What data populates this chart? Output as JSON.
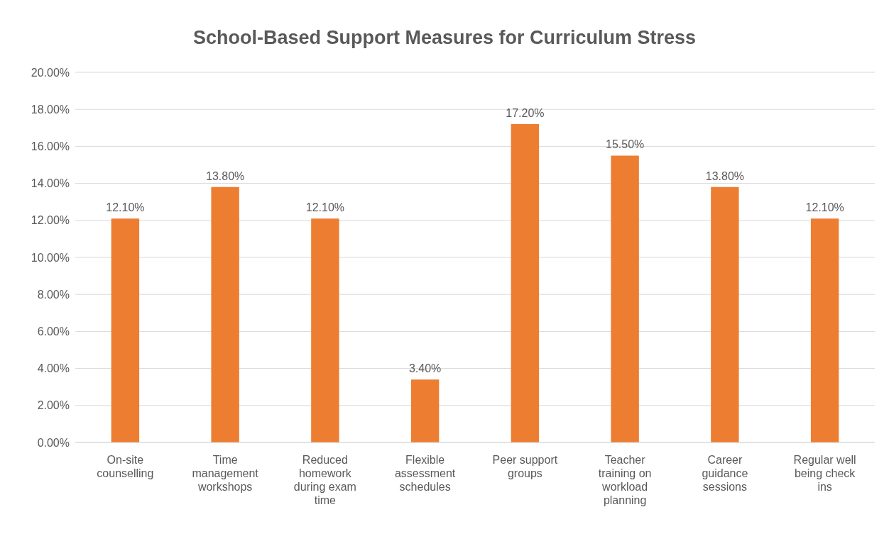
{
  "chart_data": {
    "type": "bar",
    "title": "School-Based Support Measures for Curriculum Stress",
    "categories": [
      "On-site counselling",
      "Time management workshops",
      "Reduced homework during exam time",
      "Flexible assessment schedules",
      "Peer support groups",
      "Teacher training on workload planning",
      "Career guidance sessions",
      "Regular well being check ins"
    ],
    "values": [
      12.1,
      13.8,
      12.1,
      3.4,
      17.2,
      15.5,
      13.8,
      12.1
    ],
    "value_labels": [
      "12.10%",
      "13.80%",
      "12.10%",
      "3.40%",
      "17.20%",
      "15.50%",
      "13.80%",
      "12.10%"
    ],
    "color": "#ed7d31",
    "ylim": [
      0,
      20
    ],
    "yticks": [
      {
        "value": 0,
        "label": "0.00%"
      },
      {
        "value": 2,
        "label": "2.00%"
      },
      {
        "value": 4,
        "label": "4.00%"
      },
      {
        "value": 6,
        "label": "6.00%"
      },
      {
        "value": 8,
        "label": "8.00%"
      },
      {
        "value": 10,
        "label": "10.00%"
      },
      {
        "value": 12,
        "label": "12.00%"
      },
      {
        "value": 14,
        "label": "14.00%"
      },
      {
        "value": 16,
        "label": "16.00%"
      },
      {
        "value": 18,
        "label": "18.00%"
      },
      {
        "value": 20,
        "label": "20.00%"
      }
    ],
    "grid": "y"
  }
}
